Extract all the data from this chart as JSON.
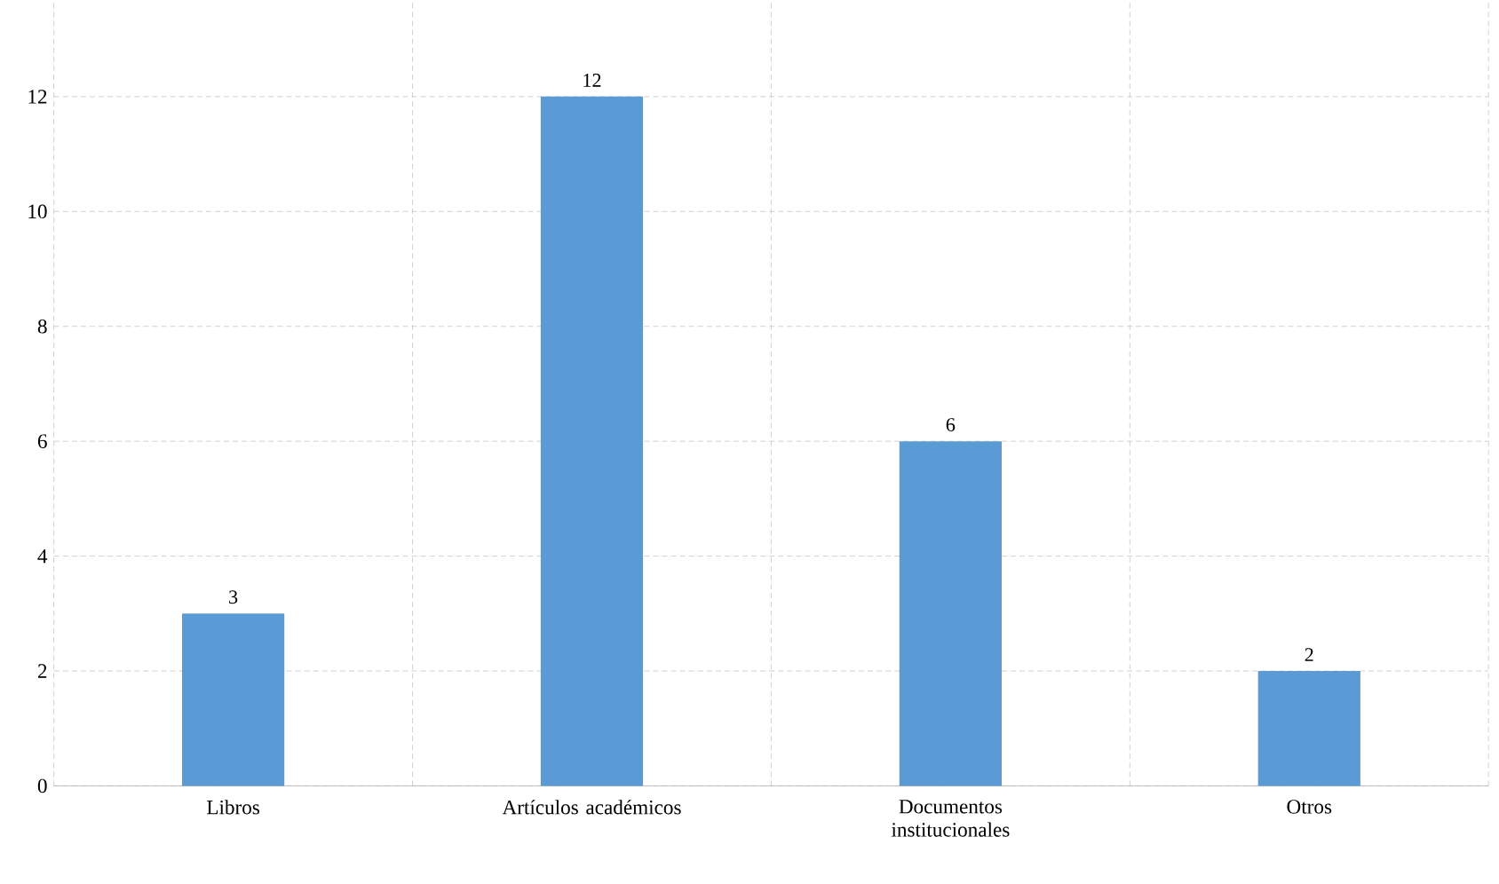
{
  "chart_data": {
    "type": "bar",
    "categories": [
      "Libros",
      "Artículos académicos",
      "Documentos institucionales",
      "Otros"
    ],
    "values": [
      3,
      12,
      6,
      2
    ],
    "color": "#5b9bd5",
    "ylim": [
      0,
      14
    ],
    "yticks": [
      0,
      2,
      4,
      6,
      8,
      10,
      12
    ],
    "grid": true,
    "data_labels": true
  }
}
